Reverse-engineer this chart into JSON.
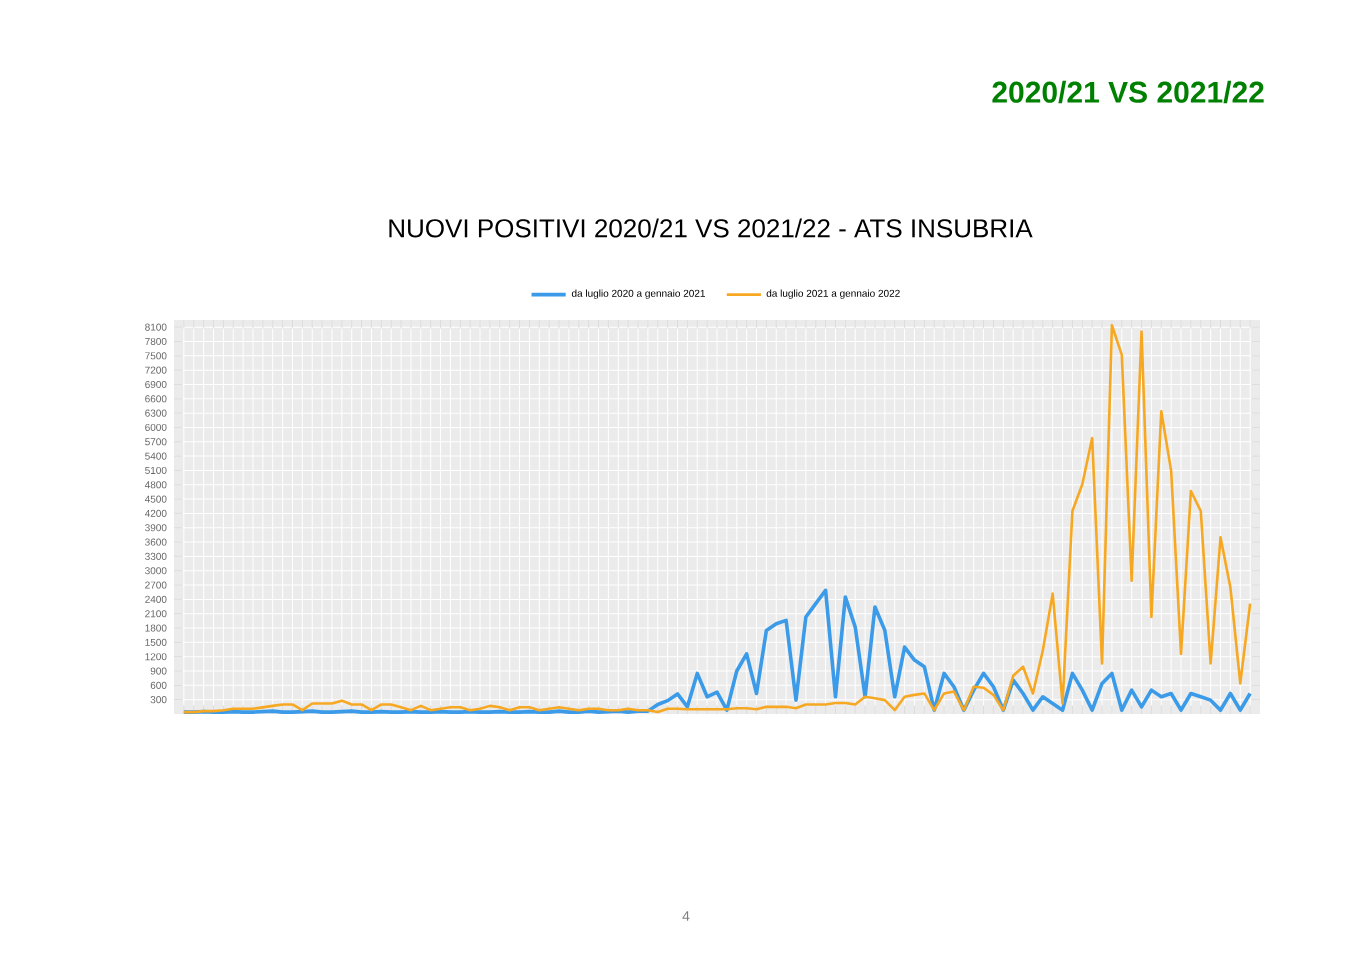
{
  "chart_data": {
    "type": "line",
    "title": "NUOVI POSITIVI 2020/21 VS 2021/22 - ATS INSUBRIA",
    "annotations": [
      "2020/21 VS 2021/22",
      "4"
    ],
    "categories": [
      null,
      null,
      null,
      null,
      null,
      null,
      null,
      null,
      null,
      null,
      null,
      null,
      null,
      null,
      null,
      null,
      null,
      null,
      null,
      null,
      null,
      null,
      null,
      null,
      null,
      null,
      null,
      null,
      null,
      null,
      null,
      null,
      null,
      null,
      null,
      null,
      null,
      null,
      null,
      null,
      null,
      null,
      null,
      null,
      null,
      null,
      null,
      null,
      null,
      null,
      null,
      null,
      null,
      null,
      null,
      null,
      null,
      null,
      null,
      null,
      null,
      null,
      null,
      null,
      null,
      null,
      null,
      null,
      null,
      null,
      null,
      null,
      null,
      null,
      null,
      null,
      null,
      null,
      null,
      null,
      null,
      null,
      null,
      null,
      null,
      null,
      null,
      null,
      null,
      null,
      null,
      null,
      null,
      null,
      null,
      null,
      null,
      null,
      null,
      null,
      null,
      null,
      null,
      null,
      null,
      null,
      null,
      null,
      null
    ],
    "series": [
      {
        "name": "da luglio 2020 a gennaio 2021",
        "color": "#3b9be8",
        "values": [
          40,
          40,
          50,
          40,
          40,
          50,
          40,
          40,
          50,
          60,
          40,
          40,
          50,
          60,
          40,
          40,
          50,
          60,
          40,
          40,
          50,
          40,
          40,
          50,
          40,
          40,
          50,
          40,
          40,
          50,
          40,
          40,
          50,
          40,
          40,
          50,
          40,
          40,
          60,
          40,
          40,
          60,
          40,
          50,
          60,
          40,
          60,
          60,
          200,
          280,
          420,
          150,
          850,
          360,
          460,
          80,
          900,
          1260,
          430,
          1750,
          1890,
          1960,
          290,
          2030,
          2310,
          2590,
          360,
          2450,
          1820,
          360,
          2240,
          1750,
          360,
          1400,
          1130,
          990,
          80,
          850,
          570,
          80,
          500,
          850,
          570,
          80,
          710,
          430,
          80,
          360,
          220,
          80,
          850,
          500,
          80,
          640,
          850,
          80,
          500,
          150,
          500,
          360,
          430,
          80,
          430,
          360,
          290,
          80,
          430,
          80,
          430
        ]
      },
      {
        "name": "da luglio 2021 a gennaio 2022",
        "color": "#f7a823",
        "values": [
          40,
          40,
          60,
          60,
          80,
          110,
          110,
          110,
          140,
          170,
          200,
          200,
          80,
          220,
          220,
          220,
          280,
          200,
          200,
          80,
          200,
          200,
          140,
          80,
          170,
          80,
          110,
          140,
          140,
          80,
          110,
          170,
          140,
          80,
          140,
          140,
          80,
          110,
          140,
          110,
          80,
          110,
          110,
          80,
          80,
          110,
          80,
          80,
          40,
          110,
          110,
          100,
          100,
          100,
          100,
          100,
          120,
          120,
          100,
          150,
          150,
          150,
          120,
          200,
          200,
          200,
          230,
          230,
          200,
          360,
          330,
          290,
          80,
          360,
          400,
          430,
          80,
          430,
          470,
          80,
          570,
          550,
          400,
          80,
          800,
          990,
          430,
          1330,
          2520,
          220,
          4250,
          4810,
          5780,
          1060,
          8140,
          7520,
          2790,
          8010,
          2030,
          6340,
          5090,
          1260,
          4670,
          4250,
          1060,
          3700,
          2650,
          640,
          2310
        ]
      }
    ],
    "ylim": [
      0,
      8250
    ],
    "yticks": [
      300,
      600,
      900,
      1200,
      1500,
      1800,
      2100,
      2400,
      2700,
      3000,
      3300,
      3600,
      3900,
      4200,
      4500,
      4800,
      5100,
      5400,
      5700,
      6000,
      6300,
      6600,
      6900,
      7200,
      7500,
      7800,
      8100
    ],
    "grid": true,
    "legend": "top"
  }
}
